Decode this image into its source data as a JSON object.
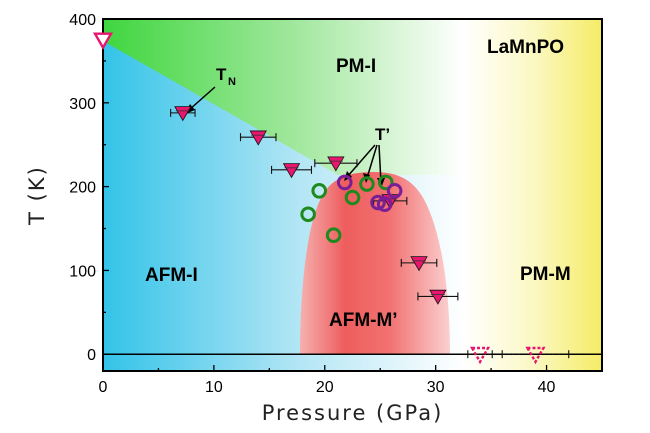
{
  "chart_data": {
    "type": "scatter",
    "xlabel": "Pressure (GPa)",
    "ylabel": "T (K)",
    "xlim": [
      0,
      45
    ],
    "ylim": [
      -20,
      400
    ],
    "x_ticks": [
      0,
      10,
      20,
      30,
      40
    ],
    "y_ticks": [
      0,
      100,
      200,
      300,
      400
    ],
    "sample_label": "LaMnPO",
    "regions": [
      {
        "name": "PM-I",
        "color": "#55dd55",
        "label": "PM-I"
      },
      {
        "name": "AFM-I",
        "color": "#33c3e8",
        "label": "AFM-I"
      },
      {
        "name": "PM-M",
        "color": "#f5f07a",
        "label": "PM-M"
      },
      {
        "name": "AFM-M'",
        "color": "#f05a5a",
        "label": "AFM-M’"
      }
    ],
    "annotations": [
      {
        "label": "T",
        "subscript": "N"
      },
      {
        "label": "T’"
      }
    ],
    "series": [
      {
        "marker": "filled-down-triangle",
        "color": "#e8166e",
        "points": [
          {
            "x": 0,
            "y": 375,
            "xerr": 0,
            "open": true
          },
          {
            "x": 7.2,
            "y": 288,
            "xerr": 1.1
          },
          {
            "x": 14.0,
            "y": 259,
            "xerr": 1.6
          },
          {
            "x": 17.0,
            "y": 220,
            "xerr": 1.8
          },
          {
            "x": 21.0,
            "y": 228,
            "xerr": 1.9
          },
          {
            "x": 25.9,
            "y": 183,
            "xerr": 1.5
          },
          {
            "x": 28.5,
            "y": 109,
            "xerr": 1.6
          },
          {
            "x": 30.2,
            "y": 69,
            "xerr": 1.8
          },
          {
            "x": 34.0,
            "y": 0,
            "xerr": 1.1,
            "open": true,
            "dashed": true
          },
          {
            "x": 39.0,
            "y": 0,
            "xerr": 3.0,
            "open": true,
            "dashed": true
          }
        ]
      },
      {
        "marker": "open-circle",
        "color": "#1e8a1e",
        "points": [
          {
            "x": 18.5,
            "y": 167
          },
          {
            "x": 19.5,
            "y": 195
          },
          {
            "x": 20.8,
            "y": 142
          },
          {
            "x": 22.5,
            "y": 187
          },
          {
            "x": 23.8,
            "y": 203
          },
          {
            "x": 25.5,
            "y": 205
          }
        ]
      },
      {
        "marker": "open-circle",
        "color": "#7a1e96",
        "points": [
          {
            "x": 21.8,
            "y": 205
          },
          {
            "x": 24.8,
            "y": 181
          },
          {
            "x": 25.4,
            "y": 179
          },
          {
            "x": 26.3,
            "y": 195
          }
        ]
      }
    ]
  }
}
